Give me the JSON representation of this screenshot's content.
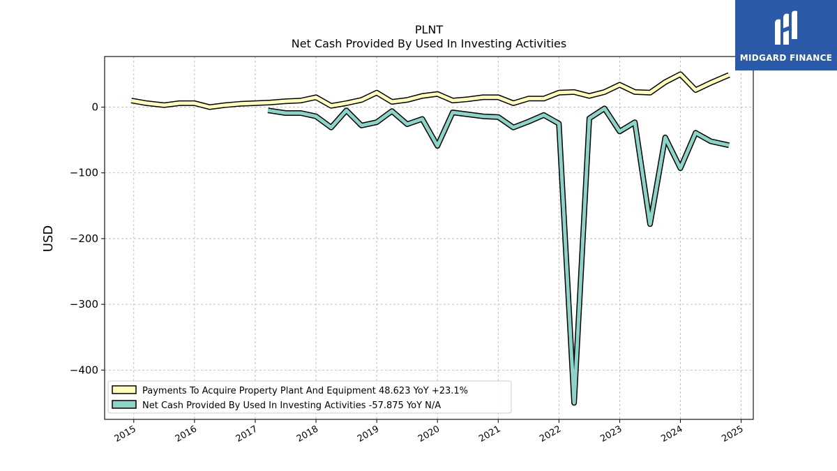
{
  "chart_data": {
    "type": "line",
    "title": "PLNT",
    "subtitle": "Net Cash Provided By Used In Investing Activities",
    "ylabel": "USD",
    "xlabel": "",
    "ylim": [
      -475,
      77
    ],
    "xlim": [
      2014.52,
      2025.2
    ],
    "yticks": [
      {
        "v": 0,
        "label": "0"
      },
      {
        "v": -100,
        "label": "−100"
      },
      {
        "v": -200,
        "label": "−200"
      },
      {
        "v": -300,
        "label": "−300"
      },
      {
        "v": -400,
        "label": "−400"
      }
    ],
    "xticks": [
      {
        "v": 2015,
        "label": "2015"
      },
      {
        "v": 2016,
        "label": "2016"
      },
      {
        "v": 2017,
        "label": "2017"
      },
      {
        "v": 2018,
        "label": "2018"
      },
      {
        "v": 2019,
        "label": "2019"
      },
      {
        "v": 2020,
        "label": "2020"
      },
      {
        "v": 2021,
        "label": "2021"
      },
      {
        "v": 2022,
        "label": "2022"
      },
      {
        "v": 2023,
        "label": "2023"
      },
      {
        "v": 2024,
        "label": "2024"
      },
      {
        "v": 2025,
        "label": "2025"
      }
    ],
    "grid": true,
    "legend_position": "lower-left",
    "series": [
      {
        "name": "Payments To Acquire Property Plant And Equipment",
        "legend_label": "Payments To Acquire Property Plant And Equipment  48.623 YoY +23.1%",
        "color": "#ffffc0",
        "edge_color": "#000000",
        "x": [
          2014.96,
          2015.21,
          2015.5,
          2015.75,
          2016.0,
          2016.25,
          2016.5,
          2016.75,
          2017.0,
          2017.25,
          2017.5,
          2017.75,
          2018.0,
          2018.25,
          2018.5,
          2018.75,
          2019.0,
          2019.25,
          2019.5,
          2019.75,
          2020.0,
          2020.25,
          2020.5,
          2020.75,
          2021.0,
          2021.25,
          2021.5,
          2021.75,
          2022.0,
          2022.25,
          2022.5,
          2022.75,
          2023.0,
          2023.25,
          2023.5,
          2023.75,
          2024.0,
          2024.25,
          2024.5,
          2024.8
        ],
        "values": [
          10,
          6,
          3,
          6,
          6,
          0,
          3,
          5,
          6,
          7,
          9,
          10,
          15,
          2,
          6,
          11,
          22,
          8,
          11,
          17,
          20,
          10,
          12,
          15,
          15,
          6,
          13,
          13,
          22,
          23,
          17,
          23,
          34,
          23,
          22,
          38,
          50,
          26,
          37,
          49
        ]
      },
      {
        "name": "Net Cash Provided By Used In Investing Activities",
        "legend_label": "Net Cash Provided By Used In Investing Activities  -57.875 YoY N/A",
        "color": "#8dd3c7",
        "edge_color": "#000000",
        "x": [
          2017.21,
          2017.5,
          2017.75,
          2018.0,
          2018.25,
          2018.5,
          2018.75,
          2019.0,
          2019.25,
          2019.5,
          2019.75,
          2020.0,
          2020.25,
          2020.5,
          2020.75,
          2021.0,
          2021.25,
          2021.5,
          2021.75,
          2022.0,
          2022.25,
          2022.5,
          2022.75,
          2023.0,
          2023.25,
          2023.5,
          2023.75,
          2024.0,
          2024.25,
          2024.5,
          2024.8
        ],
        "values": [
          -5,
          -9,
          -9,
          -14,
          -31,
          -5,
          -28,
          -23,
          -6,
          -26,
          -18,
          -59,
          -8,
          -11,
          -14,
          -15,
          -31,
          -22,
          -12,
          -25,
          -450,
          -17,
          -2,
          -37,
          -23,
          -178,
          -46,
          -93,
          -39,
          -52,
          -58
        ]
      }
    ]
  },
  "logo": {
    "text": "MIDGARD FINANCE"
  }
}
